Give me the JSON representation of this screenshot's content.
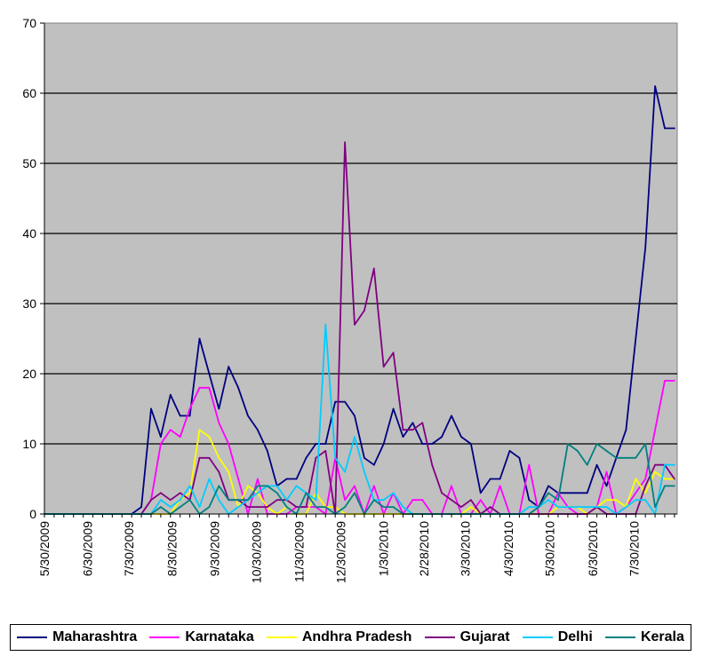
{
  "chart_data": {
    "type": "line",
    "title": "",
    "xlabel": "",
    "ylabel": "",
    "ylim": [
      0,
      70
    ],
    "yticks": [
      0,
      10,
      20,
      30,
      40,
      50,
      60,
      70
    ],
    "xlim": [
      "2009-05-30",
      "2010-08-30"
    ],
    "x_tick_labels": [
      "5/30/2009",
      "6/30/2009",
      "7/30/2009",
      "8/30/2009",
      "9/30/2009",
      "10/30/2009",
      "11/30/2009",
      "12/30/2009",
      "1/30/2010",
      "2/28/2010",
      "3/30/2010",
      "4/30/2010",
      "5/30/2010",
      "6/30/2010",
      "7/30/2010"
    ],
    "grid": "horizontal",
    "plot_background": "#C0C0C0",
    "legend_position": "bottom",
    "x": [
      "2009-05-30",
      "2009-06-06",
      "2009-06-13",
      "2009-06-20",
      "2009-06-27",
      "2009-07-04",
      "2009-07-11",
      "2009-07-18",
      "2009-07-25",
      "2009-08-01",
      "2009-08-08",
      "2009-08-15",
      "2009-08-22",
      "2009-08-29",
      "2009-09-05",
      "2009-09-12",
      "2009-09-19",
      "2009-09-26",
      "2009-10-03",
      "2009-10-10",
      "2009-10-17",
      "2009-10-24",
      "2009-10-31",
      "2009-11-07",
      "2009-11-14",
      "2009-11-21",
      "2009-11-28",
      "2009-12-05",
      "2009-12-12",
      "2009-12-19",
      "2009-12-26",
      "2010-01-02",
      "2010-01-09",
      "2010-01-16",
      "2010-01-23",
      "2010-01-30",
      "2010-02-06",
      "2010-02-13",
      "2010-02-20",
      "2010-02-27",
      "2010-03-06",
      "2010-03-13",
      "2010-03-20",
      "2010-03-27",
      "2010-04-03",
      "2010-04-10",
      "2010-04-17",
      "2010-04-24",
      "2010-05-01",
      "2010-05-08",
      "2010-05-15",
      "2010-05-22",
      "2010-05-29",
      "2010-06-05",
      "2010-06-12",
      "2010-06-19",
      "2010-06-26",
      "2010-07-03",
      "2010-07-10",
      "2010-07-17",
      "2010-07-24",
      "2010-07-31",
      "2010-08-07",
      "2010-08-14",
      "2010-08-21",
      "2010-08-28"
    ],
    "series": [
      {
        "name": "Maharashtra",
        "color": "#000080",
        "values": [
          0,
          0,
          0,
          0,
          0,
          0,
          0,
          0,
          0,
          0,
          1,
          15,
          11,
          17,
          14,
          14,
          25,
          20,
          15,
          21,
          18,
          14,
          12,
          9,
          4,
          5,
          5,
          8,
          10,
          10,
          16,
          16,
          14,
          8,
          7,
          10,
          15,
          11,
          13,
          10,
          10,
          11,
          14,
          11,
          10,
          3,
          5,
          5,
          9,
          8,
          2,
          1,
          4,
          3,
          3,
          3,
          3,
          7,
          4,
          8,
          12,
          25,
          38,
          61,
          55,
          55
        ]
      },
      {
        "name": "Karnataka",
        "color": "#FF00FF",
        "values": [
          0,
          0,
          0,
          0,
          0,
          0,
          0,
          0,
          0,
          0,
          0,
          2,
          10,
          12,
          11,
          15,
          18,
          18,
          13,
          10,
          5,
          0,
          5,
          0,
          0,
          0,
          1,
          1,
          1,
          0,
          8,
          2,
          4,
          0,
          4,
          0,
          3,
          0,
          2,
          2,
          0,
          0,
          4,
          0,
          0,
          2,
          0,
          4,
          0,
          0,
          7,
          0,
          0,
          3,
          1,
          0,
          0,
          1,
          6,
          0,
          1,
          3,
          5,
          12,
          19,
          19
        ]
      },
      {
        "name": "Andhra Pradesh",
        "color": "#FFFF00",
        "values": [
          0,
          0,
          0,
          0,
          0,
          0,
          0,
          0,
          0,
          0,
          0,
          0,
          0,
          0,
          2,
          3,
          12,
          11,
          8,
          6,
          1,
          4,
          3,
          1,
          0,
          1,
          0,
          0,
          3,
          1,
          1,
          0,
          0,
          0,
          0,
          0,
          0,
          0,
          0,
          0,
          0,
          0,
          0,
          0,
          1,
          0,
          0,
          0,
          0,
          0,
          0,
          0,
          0,
          1,
          1,
          1,
          0,
          1,
          2,
          2,
          1,
          5,
          3,
          6,
          5,
          5
        ]
      },
      {
        "name": "Gujarat",
        "color": "#800080",
        "values": [
          0,
          0,
          0,
          0,
          0,
          0,
          0,
          0,
          0,
          0,
          0,
          2,
          3,
          2,
          3,
          2,
          8,
          8,
          6,
          2,
          2,
          1,
          1,
          1,
          2,
          2,
          1,
          1,
          8,
          9,
          0,
          53,
          27,
          29,
          35,
          21,
          23,
          12,
          12,
          13,
          7,
          3,
          2,
          1,
          2,
          0,
          1,
          0,
          0,
          0,
          0,
          0,
          0,
          0,
          0,
          0,
          0,
          1,
          0,
          0,
          0,
          0,
          4,
          7,
          7,
          5
        ]
      },
      {
        "name": "Delhi",
        "color": "#00CCFF",
        "values": [
          0,
          0,
          0,
          0,
          0,
          0,
          0,
          0,
          0,
          0,
          0,
          0,
          2,
          1,
          2,
          4,
          1,
          5,
          2,
          0,
          1,
          2,
          3,
          4,
          4,
          2,
          4,
          3,
          2,
          27,
          8,
          6,
          11,
          6,
          2,
          2,
          3,
          1,
          0,
          0,
          0,
          0,
          0,
          0,
          0,
          0,
          0,
          0,
          0,
          0,
          1,
          1,
          2,
          1,
          1,
          1,
          1,
          1,
          1,
          0,
          1,
          2,
          2,
          0,
          7,
          7
        ]
      },
      {
        "name": "Kerala",
        "color": "#008080",
        "values": [
          0,
          0,
          0,
          0,
          0,
          0,
          0,
          0,
          0,
          0,
          0,
          0,
          1,
          0,
          1,
          2,
          0,
          1,
          4,
          2,
          2,
          2,
          4,
          4,
          3,
          1,
          0,
          3,
          1,
          1,
          0,
          1,
          3,
          0,
          2,
          1,
          1,
          0,
          0,
          0,
          0,
          0,
          0,
          0,
          0,
          0,
          0,
          0,
          0,
          0,
          0,
          1,
          3,
          2,
          10,
          9,
          7,
          10,
          9,
          8,
          8,
          8,
          10,
          1,
          4,
          4
        ]
      }
    ]
  }
}
